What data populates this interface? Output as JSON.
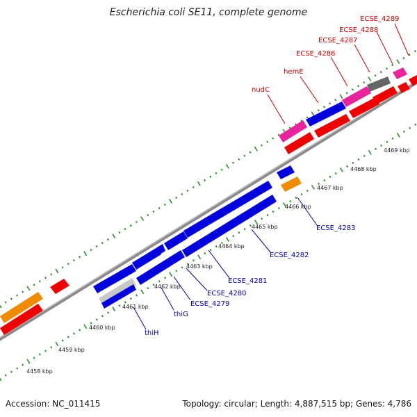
{
  "title": "Escherichia coli SE11, complete genome",
  "footer": {
    "accession": "Accession: NC_011415",
    "summary": "Topology: circular; Length: 4,887,515 bp; Genes: 4,786"
  },
  "colors": {
    "forward_label": "#cc0000",
    "reverse_label": "#0000aa",
    "backbone": "#9a9a9a",
    "tick": "#2e8b2e",
    "blue": "#0000dd",
    "red": "#ee0000",
    "magenta": "#e8249c",
    "orange": "#f08a00",
    "gray": "#666666",
    "lightgray": "#c8c8c8"
  },
  "kbp_labels": [
    "4458 kbp",
    "4459 kbp",
    "4460 kbp",
    "4461 kbp",
    "4462 kbp",
    "4463 kbp",
    "4464 kbp",
    "4465 kbp",
    "4466 kbp",
    "4467 kbp",
    "4468 kbp",
    "4469 kbp"
  ],
  "forward_genes": [
    "nudC",
    "hemE",
    "ECSE_4286",
    "ECSE_4287",
    "ECSE_4288",
    "ECSE_4289"
  ],
  "reverse_genes": [
    "thiH",
    "thiG",
    "ECSE_4279",
    "ECSE_4280",
    "ECSE_4281",
    "ECSE_4282",
    "ECSE_4283"
  ]
}
